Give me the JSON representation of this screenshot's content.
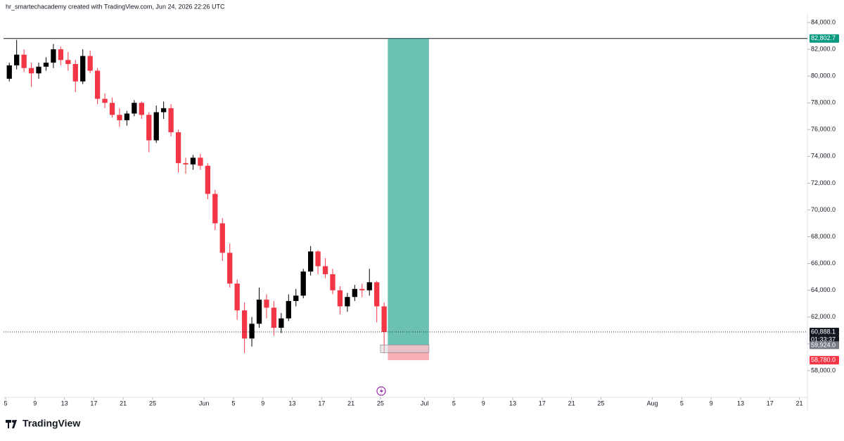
{
  "header": {
    "caption": "hr_smartechacademy created with TradingView.com, Jun 24, 2026 22:26 UTC"
  },
  "footer": {
    "logo": "TradingView"
  },
  "chart_data": {
    "type": "candlestick",
    "x": [
      "May 5",
      "May 6",
      "May 7",
      "May 8",
      "May 9",
      "May 10",
      "May 11",
      "May 12",
      "May 13",
      "May 14",
      "May 15",
      "May 16",
      "May 17",
      "May 18",
      "May 19",
      "May 20",
      "May 21",
      "May 22",
      "May 23",
      "May 24",
      "May 25",
      "May 26",
      "May 27",
      "May 28",
      "May 29",
      "May 30",
      "May 31",
      "Jun 1",
      "Jun 2",
      "Jun 3",
      "Jun 4",
      "Jun 5",
      "Jun 6",
      "Jun 7",
      "Jun 8",
      "Jun 9",
      "Jun 10",
      "Jun 11",
      "Jun 12",
      "Jun 13",
      "Jun 14",
      "Jun 15",
      "Jun 16",
      "Jun 17",
      "Jun 18",
      "Jun 19",
      "Jun 20",
      "Jun 21",
      "Jun 22",
      "Jun 23",
      "Jun 24",
      "Jun 25"
    ],
    "open": [
      79800,
      80800,
      81600,
      80600,
      80200,
      80700,
      81000,
      82000,
      81200,
      80900,
      79600,
      81500,
      80400,
      78300,
      78000,
      77100,
      76700,
      77200,
      78000,
      77100,
      75200,
      77300,
      77600,
      75800,
      73500,
      73400,
      73900,
      73300,
      71200,
      69000,
      66800,
      64500,
      62500,
      60400,
      61500,
      63300,
      62700,
      61200,
      61900,
      63200,
      63600,
      65400,
      66900,
      65800,
      65200,
      64000,
      62800,
      63500,
      64100,
      64000,
      64600,
      62800
    ],
    "high": [
      81000,
      82700,
      82000,
      81000,
      81000,
      81400,
      82400,
      82200,
      81800,
      81200,
      82000,
      81900,
      80600,
      78700,
      78400,
      77600,
      77400,
      78200,
      78100,
      77300,
      77800,
      78100,
      77900,
      76000,
      73900,
      74100,
      74200,
      73500,
      71500,
      69400,
      67500,
      64800,
      63100,
      62000,
      64200,
      63700,
      63200,
      62300,
      63700,
      64100,
      65600,
      67300,
      67000,
      66400,
      65600,
      64300,
      63800,
      64400,
      64500,
      65600,
      64700,
      63100
    ],
    "low": [
      79600,
      80500,
      80300,
      79200,
      79800,
      80400,
      80600,
      80800,
      80400,
      78800,
      79400,
      80200,
      77900,
      77600,
      76900,
      76200,
      76300,
      77000,
      76800,
      74300,
      75000,
      76800,
      75500,
      72800,
      72700,
      73000,
      73000,
      70800,
      68500,
      66200,
      64200,
      61800,
      59300,
      59800,
      61200,
      61900,
      60600,
      60800,
      61700,
      62800,
      63400,
      65100,
      65200,
      64900,
      63700,
      62200,
      62400,
      63200,
      63500,
      63600,
      61600,
      59300
    ],
    "close": [
      80800,
      81600,
      80600,
      80200,
      80700,
      81000,
      82000,
      81200,
      80900,
      79600,
      81500,
      80400,
      78300,
      78000,
      77100,
      76700,
      77200,
      78000,
      77100,
      75200,
      77300,
      77600,
      75800,
      73500,
      73400,
      73900,
      73300,
      71200,
      69000,
      66800,
      64500,
      62500,
      60400,
      61500,
      63300,
      62700,
      61200,
      61900,
      63200,
      63600,
      65400,
      66900,
      65800,
      65200,
      64000,
      62800,
      63500,
      64100,
      64000,
      64600,
      62800,
      60888.1
    ],
    "up_color": "#000000",
    "down_color": "#f23645",
    "xlim": [
      "May 5",
      "Aug 22"
    ],
    "xticks": [
      {
        "value": "May 5",
        "label": "5"
      },
      {
        "value": "May 9",
        "label": "9"
      },
      {
        "value": "May 13",
        "label": "13"
      },
      {
        "value": "May 17",
        "label": "17"
      },
      {
        "value": "May 21",
        "label": "21"
      },
      {
        "value": "May 25",
        "label": "25"
      },
      {
        "value": "Jun 1",
        "label": "Jun"
      },
      {
        "value": "Jun 5",
        "label": "5"
      },
      {
        "value": "Jun 9",
        "label": "9"
      },
      {
        "value": "Jun 13",
        "label": "13"
      },
      {
        "value": "Jun 17",
        "label": "17"
      },
      {
        "value": "Jun 21",
        "label": "21"
      },
      {
        "value": "Jun 25",
        "label": "25"
      },
      {
        "value": "Jul 1",
        "label": "Jul"
      },
      {
        "value": "Jul 5",
        "label": "5"
      },
      {
        "value": "Jul 9",
        "label": "9"
      },
      {
        "value": "Jul 13",
        "label": "13"
      },
      {
        "value": "Jul 17",
        "label": "17"
      },
      {
        "value": "Jul 21",
        "label": "21"
      },
      {
        "value": "Jul 25",
        "label": "25"
      },
      {
        "value": "Aug 1",
        "label": "Aug"
      },
      {
        "value": "Aug 5",
        "label": "5"
      },
      {
        "value": "Aug 9",
        "label": "9"
      },
      {
        "value": "Aug 13",
        "label": "13"
      },
      {
        "value": "Aug 17",
        "label": "17"
      },
      {
        "value": "Aug 21",
        "label": "21"
      }
    ],
    "ylim": [
      56000,
      84525
    ],
    "yticks": [
      {
        "value": 58000,
        "label": "58,000.0"
      },
      {
        "value": 60000,
        "label": "60,000.0"
      },
      {
        "value": 62000,
        "label": "62,000.0"
      },
      {
        "value": 64000,
        "label": "64,000.0"
      },
      {
        "value": 66000,
        "label": "66,000.0"
      },
      {
        "value": 68000,
        "label": "68,000.0"
      },
      {
        "value": 70000,
        "label": "70,000.0"
      },
      {
        "value": 72000,
        "label": "72,000.0"
      },
      {
        "value": 74000,
        "label": "74,000.0"
      },
      {
        "value": 76000,
        "label": "76,000.0"
      },
      {
        "value": 78000,
        "label": "78,000.0"
      },
      {
        "value": 80000,
        "label": "80,000.0"
      },
      {
        "value": 82000,
        "label": "82,000.0"
      },
      {
        "value": 84000,
        "label": "84,000.0"
      }
    ],
    "last_price": {
      "value": 60888.1,
      "label": "60,888.1",
      "countdown": "01:33:37"
    },
    "position": {
      "target": {
        "value": 82802.7,
        "label": "82,802.7",
        "color": "#089981"
      },
      "entry": {
        "value": 59924,
        "label": "59,924.0",
        "color": "#787b86"
      },
      "stop": {
        "value": 58780,
        "label": "58,780.0",
        "color": "#f23645"
      },
      "start": "Jun 26",
      "end": "Jul 1"
    }
  }
}
